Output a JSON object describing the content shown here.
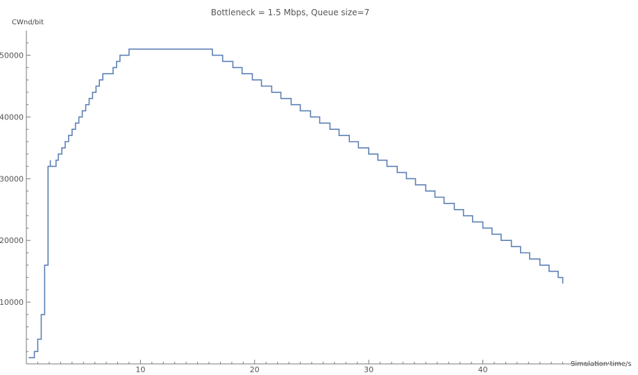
{
  "chart_data": {
    "type": "line",
    "step": true,
    "title": "Bottleneck = 1.5 Mbps, Queue size=7",
    "xlabel": "Simulation time/s",
    "ylabel": "CWnd/bit",
    "xlim": [
      0,
      52.5
    ],
    "ylim": [
      0,
      54000
    ],
    "x_major_ticks": [
      10,
      20,
      30,
      40
    ],
    "y_major_ticks": [
      10000,
      20000,
      30000,
      40000,
      50000
    ],
    "x_tick_labels": [
      "10",
      "20",
      "30",
      "40"
    ],
    "y_tick_labels": [
      "10000",
      "20000",
      "30000",
      "40000",
      "50000"
    ],
    "x_minor_step": 1,
    "y_minor_step": 2000,
    "grid": false,
    "color": "#5b7fb5",
    "series": [
      {
        "points": [
          [
            0.2,
            1000
          ],
          [
            0.7,
            2000
          ],
          [
            1.0,
            4000
          ],
          [
            1.3,
            8000
          ],
          [
            1.6,
            16000
          ],
          [
            1.9,
            32000
          ],
          [
            2.1,
            33000
          ],
          [
            2.1,
            32000
          ],
          [
            2.6,
            33000
          ],
          [
            2.8,
            34000
          ],
          [
            3.1,
            35000
          ],
          [
            3.4,
            36000
          ],
          [
            3.7,
            37000
          ],
          [
            4.0,
            38000
          ],
          [
            4.3,
            39000
          ],
          [
            4.6,
            40000
          ],
          [
            4.9,
            41000
          ],
          [
            5.2,
            42000
          ],
          [
            5.5,
            43000
          ],
          [
            5.8,
            44000
          ],
          [
            6.1,
            45000
          ],
          [
            6.4,
            46000
          ],
          [
            6.7,
            47000
          ],
          [
            7.6,
            48000
          ],
          [
            7.9,
            49000
          ],
          [
            8.2,
            50000
          ],
          [
            9.0,
            51000
          ],
          [
            16.3,
            50000
          ],
          [
            17.2,
            49000
          ],
          [
            18.1,
            48000
          ],
          [
            18.9,
            47000
          ],
          [
            19.8,
            46000
          ],
          [
            20.6,
            45000
          ],
          [
            21.5,
            44000
          ],
          [
            22.3,
            43000
          ],
          [
            23.2,
            42000
          ],
          [
            24.0,
            41000
          ],
          [
            24.9,
            40000
          ],
          [
            25.7,
            39000
          ],
          [
            26.6,
            38000
          ],
          [
            27.4,
            37000
          ],
          [
            28.3,
            36000
          ],
          [
            29.1,
            35000
          ],
          [
            30.0,
            34000
          ],
          [
            30.8,
            33000
          ],
          [
            31.6,
            32000
          ],
          [
            32.5,
            31000
          ],
          [
            33.3,
            30000
          ],
          [
            34.1,
            29000
          ],
          [
            35.0,
            28000
          ],
          [
            35.8,
            27000
          ],
          [
            36.6,
            26000
          ],
          [
            37.5,
            25000
          ],
          [
            38.3,
            24000
          ],
          [
            39.1,
            23000
          ],
          [
            40.0,
            22000
          ],
          [
            40.8,
            21000
          ],
          [
            41.6,
            20000
          ],
          [
            42.5,
            19000
          ],
          [
            43.3,
            18000
          ],
          [
            44.1,
            17000
          ],
          [
            45.0,
            16000
          ],
          [
            45.8,
            15000
          ],
          [
            46.6,
            14000
          ],
          [
            47.0,
            13000
          ]
        ]
      }
    ]
  }
}
